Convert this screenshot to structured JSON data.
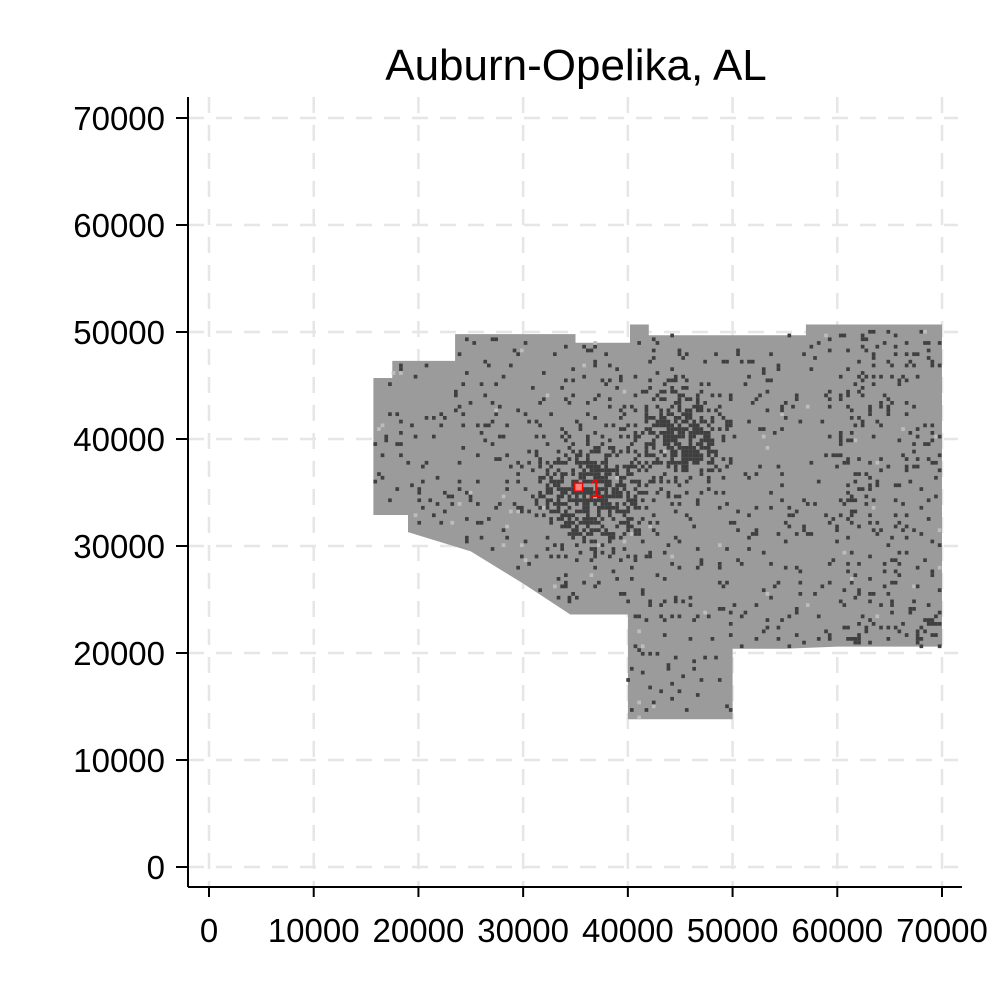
{
  "chart_data": {
    "type": "scatter",
    "title": "Auburn-Opelika, AL",
    "xlabel": "",
    "ylabel": "",
    "xlim": [
      0,
      70000
    ],
    "ylim": [
      0,
      70000
    ],
    "x_ticks": [
      0,
      10000,
      20000,
      30000,
      40000,
      50000,
      60000,
      70000
    ],
    "y_ticks": [
      0,
      10000,
      20000,
      30000,
      40000,
      50000,
      60000,
      70000
    ],
    "grid": true,
    "colors": {
      "region_fill": "#9b9b9b",
      "developed_cells": "#3f3f3f",
      "light_cells": "#bdbdbd",
      "marker": "#ff0000",
      "grid": "#e6e6e6",
      "axis": "#000000"
    },
    "region_outline": [
      [
        15700,
        45700
      ],
      [
        17500,
        45700
      ],
      [
        17500,
        47300
      ],
      [
        23500,
        47300
      ],
      [
        23500,
        49800
      ],
      [
        35000,
        49800
      ],
      [
        35000,
        49000
      ],
      [
        40200,
        49000
      ],
      [
        40200,
        50700
      ],
      [
        42000,
        50700
      ],
      [
        42000,
        49700
      ],
      [
        57000,
        49700
      ],
      [
        57000,
        50700
      ],
      [
        70000,
        50700
      ],
      [
        70000,
        20600
      ],
      [
        60000,
        20600
      ],
      [
        55000,
        20400
      ],
      [
        50000,
        20400
      ],
      [
        50000,
        13800
      ],
      [
        40000,
        13800
      ],
      [
        40000,
        23600
      ],
      [
        34500,
        23600
      ],
      [
        30000,
        26500
      ],
      [
        25000,
        29500
      ],
      [
        19000,
        31300
      ],
      [
        19000,
        32900
      ],
      [
        15700,
        32900
      ]
    ],
    "dense_cores": [
      {
        "x": 36500,
        "y": 35000,
        "r": 3000
      },
      {
        "x": 45000,
        "y": 40000,
        "r": 2500
      }
    ],
    "markers": [
      {
        "x": 35300,
        "y": 35500,
        "label": "1"
      }
    ]
  }
}
